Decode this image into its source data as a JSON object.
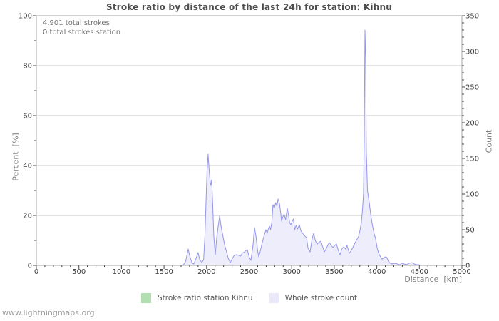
{
  "header": {
    "title": "Stroke ratio by distance of the last 24h for station: Kihnu"
  },
  "annotations": {
    "total_strokes": "4,901 total strokes",
    "total_strokes_station": "0 total strokes station"
  },
  "legend": {
    "items": [
      {
        "label": "Stroke ratio station Kihnu",
        "color": "#b2dfb2"
      },
      {
        "label": "Whole stroke count",
        "color": "#e9e9fa"
      }
    ]
  },
  "footer": {
    "site": "www.lightningmaps.org"
  },
  "colors": {
    "grid": "#c9c9c9",
    "plot_border": "#a6a6a6",
    "tick": "#4a4a4a",
    "tick_label": "#3a3a3a"
  },
  "chart_data": {
    "type": "area",
    "title": "Stroke ratio by distance of the last 24h for station: Kihnu",
    "axes": {
      "x": {
        "title": "Distance  [km]",
        "min": 0,
        "max": 5000,
        "major": 500,
        "minor": 100,
        "labels": [
          "0",
          "500",
          "1000",
          "1500",
          "2000",
          "2500",
          "3000",
          "3500",
          "4000",
          "4500",
          "5000"
        ]
      },
      "left": {
        "title": "Percent  [%]",
        "min": 0,
        "max": 100,
        "major": 20,
        "minor": 10,
        "labels": [
          "0",
          "20",
          "40",
          "60",
          "80",
          "100"
        ],
        "gridlines": [
          20,
          40,
          60,
          80
        ]
      },
      "right": {
        "title": "Count",
        "min": 0,
        "max": 350,
        "major": 50,
        "minor": 10,
        "labels": [
          "0",
          "50",
          "100",
          "150",
          "200",
          "250",
          "300",
          "350"
        ]
      }
    },
    "series": [
      {
        "name": "Stroke ratio station Kihnu",
        "axis": "left",
        "color": "#b2dfb2",
        "fill": "#b2dfb2",
        "points": []
      },
      {
        "name": "Whole stroke count",
        "axis": "right",
        "color": "#9595ea",
        "fill": "#e9e9fa",
        "points": [
          [
            0,
            0
          ],
          [
            500,
            0
          ],
          [
            1000,
            0
          ],
          [
            1500,
            0
          ],
          [
            1700,
            0
          ],
          [
            1730,
            1
          ],
          [
            1755,
            6
          ],
          [
            1784,
            23
          ],
          [
            1805,
            12
          ],
          [
            1830,
            3
          ],
          [
            1850,
            2
          ],
          [
            1870,
            8
          ],
          [
            1900,
            18
          ],
          [
            1920,
            8
          ],
          [
            1945,
            4
          ],
          [
            1965,
            8
          ],
          [
            1980,
            40
          ],
          [
            1995,
            95
          ],
          [
            2005,
            130
          ],
          [
            2018,
            156
          ],
          [
            2028,
            138
          ],
          [
            2040,
            119
          ],
          [
            2050,
            112
          ],
          [
            2060,
            120
          ],
          [
            2072,
            85
          ],
          [
            2085,
            42
          ],
          [
            2102,
            15
          ],
          [
            2120,
            40
          ],
          [
            2140,
            58
          ],
          [
            2153,
            69
          ],
          [
            2170,
            55
          ],
          [
            2195,
            39
          ],
          [
            2215,
            27
          ],
          [
            2230,
            21
          ],
          [
            2255,
            10
          ],
          [
            2278,
            4
          ],
          [
            2300,
            9
          ],
          [
            2325,
            14
          ],
          [
            2350,
            15
          ],
          [
            2379,
            14
          ],
          [
            2400,
            13
          ],
          [
            2420,
            17
          ],
          [
            2445,
            19
          ],
          [
            2479,
            22
          ],
          [
            2500,
            12
          ],
          [
            2521,
            7
          ],
          [
            2545,
            28
          ],
          [
            2563,
            53
          ],
          [
            2580,
            41
          ],
          [
            2600,
            21
          ],
          [
            2613,
            12
          ],
          [
            2635,
            22
          ],
          [
            2660,
            35
          ],
          [
            2697,
            50
          ],
          [
            2712,
            45
          ],
          [
            2725,
            51
          ],
          [
            2739,
            55
          ],
          [
            2752,
            50
          ],
          [
            2768,
            62
          ],
          [
            2780,
            85
          ],
          [
            2795,
            80
          ],
          [
            2812,
            88
          ],
          [
            2825,
            83
          ],
          [
            2840,
            93
          ],
          [
            2856,
            87
          ],
          [
            2870,
            74
          ],
          [
            2881,
            62
          ],
          [
            2896,
            68
          ],
          [
            2910,
            72
          ],
          [
            2928,
            64
          ],
          [
            2948,
            80
          ],
          [
            2962,
            71
          ],
          [
            2976,
            60
          ],
          [
            2990,
            57
          ],
          [
            3006,
            62
          ],
          [
            3020,
            65
          ],
          [
            3036,
            50
          ],
          [
            3052,
            56
          ],
          [
            3070,
            51
          ],
          [
            3090,
            57
          ],
          [
            3110,
            48
          ],
          [
            3130,
            45
          ],
          [
            3155,
            41
          ],
          [
            3174,
            39
          ],
          [
            3192,
            24
          ],
          [
            3216,
            19
          ],
          [
            3238,
            36
          ],
          [
            3258,
            45
          ],
          [
            3280,
            34
          ],
          [
            3300,
            30
          ],
          [
            3320,
            32
          ],
          [
            3342,
            34
          ],
          [
            3362,
            27
          ],
          [
            3384,
            19
          ],
          [
            3404,
            23
          ],
          [
            3424,
            28
          ],
          [
            3442,
            32
          ],
          [
            3464,
            28
          ],
          [
            3484,
            25
          ],
          [
            3505,
            28
          ],
          [
            3526,
            30
          ],
          [
            3548,
            21
          ],
          [
            3568,
            15
          ],
          [
            3590,
            23
          ],
          [
            3610,
            26
          ],
          [
            3632,
            23
          ],
          [
            3650,
            28
          ],
          [
            3677,
            17
          ],
          [
            3700,
            21
          ],
          [
            3722,
            26
          ],
          [
            3740,
            31
          ],
          [
            3765,
            36
          ],
          [
            3785,
            40
          ],
          [
            3802,
            49
          ],
          [
            3818,
            60
          ],
          [
            3832,
            78
          ],
          [
            3843,
            100
          ],
          [
            3852,
            170
          ],
          [
            3861,
            330
          ],
          [
            3869,
            290
          ],
          [
            3877,
            160
          ],
          [
            3890,
            105
          ],
          [
            3911,
            88
          ],
          [
            3932,
            68
          ],
          [
            3952,
            54
          ],
          [
            3970,
            44
          ],
          [
            3987,
            37
          ],
          [
            4005,
            24
          ],
          [
            4022,
            17
          ],
          [
            4040,
            13
          ],
          [
            4060,
            9
          ],
          [
            4080,
            10
          ],
          [
            4100,
            12
          ],
          [
            4118,
            11
          ],
          [
            4140,
            5
          ],
          [
            4160,
            3
          ],
          [
            4180,
            2
          ],
          [
            4210,
            3
          ],
          [
            4240,
            2
          ],
          [
            4270,
            1
          ],
          [
            4300,
            3
          ],
          [
            4320,
            2
          ],
          [
            4350,
            1
          ],
          [
            4380,
            3
          ],
          [
            4410,
            4
          ],
          [
            4440,
            2
          ],
          [
            4465,
            1
          ],
          [
            4490,
            1
          ],
          [
            4520,
            0
          ],
          [
            4700,
            0
          ],
          [
            4850,
            0
          ],
          [
            5000,
            0
          ]
        ]
      }
    ]
  }
}
